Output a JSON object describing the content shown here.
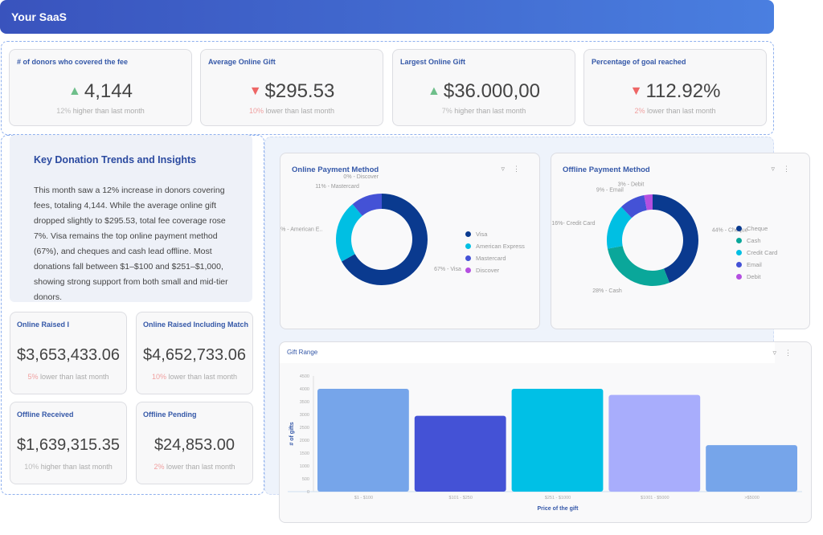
{
  "app": {
    "title": "Your SaaS"
  },
  "kpis": [
    {
      "title": "# of donors who covered the fee",
      "value": "4,144",
      "trend": "up",
      "pct": "12%",
      "text": " higher than last month"
    },
    {
      "title": "Average Online Gift",
      "value": "$295.53",
      "trend": "down",
      "pct": "10%",
      "text": " lower than last month"
    },
    {
      "title": "Largest Online Gift",
      "value": "$36.000,00",
      "trend": "up",
      "pct": "7%",
      "text": " higher than last month"
    },
    {
      "title": "Percentage of goal reached",
      "value": "112.92%",
      "trend": "down",
      "pct": "2%",
      "text": " lower than last month"
    }
  ],
  "insights": {
    "title": "Key Donation Trends and Insights",
    "body": "This month saw a 12% increase in donors covering fees, totaling 4,144. While the average online gift dropped slightly to $295.53, total fee coverage rose 7%. Visa remains the top online payment method (67%), and cheques and cash lead offline. Most donations fall between $1–$100 and $251–$1,000, showing strong support from both small and mid-tier donors."
  },
  "stats": [
    {
      "title": "Online Raised I",
      "value": "$3,653,433.06",
      "trend": "down",
      "pct": "5%",
      "text": " lower than last month"
    },
    {
      "title": "Online Raised Including Match",
      "value": "$4,652,733.06",
      "trend": "down",
      "pct": "10%",
      "text": " lower than last month"
    },
    {
      "title": "Offline Received",
      "value": "$1,639,315.35",
      "trend": "up",
      "pct": "10%",
      "text": " higher than last month"
    },
    {
      "title": "Offline Pending",
      "value": "$24,853.00",
      "trend": "down",
      "pct": "2%",
      "text": " lower than last month"
    }
  ],
  "icons": {
    "filter": "filter-icon",
    "more": "more-vertical-icon",
    "up": "triangle-up-icon",
    "down": "triangle-down-icon"
  },
  "chart_data": [
    {
      "type": "pie",
      "title": "Online Payment Method",
      "donut": true,
      "legend": "right",
      "labels": [
        "Visa",
        "American Express",
        "Mastercard",
        "Discover"
      ],
      "values": [
        67,
        22,
        11,
        0
      ],
      "data_labels": [
        "67% - Visa",
        "22% - American E..",
        "11% - Mastercard",
        "0% - Discover"
      ],
      "colors": [
        "#0a3a8f",
        "#00bfe3",
        "#4452d6",
        "#b44fe0"
      ]
    },
    {
      "type": "pie",
      "title": "Offline Payment Method",
      "donut": true,
      "legend": "right",
      "labels": [
        "Cheque",
        "Cash",
        "Credit Card",
        "Email",
        "Debit"
      ],
      "values": [
        44,
        28,
        16,
        9,
        3
      ],
      "data_labels": [
        "44% - Cheque",
        "28% - Cash",
        "16%- Credit Card",
        "9% - Email",
        "3% - Debit"
      ],
      "colors": [
        "#0a3a8f",
        "#0aa79a",
        "#00bfe3",
        "#4452d6",
        "#b44fe0"
      ]
    },
    {
      "type": "bar",
      "title": "Gift Range",
      "xlabel": "Price of the gift",
      "ylabel": "# of gifts",
      "categories": [
        "$1 - $100",
        "$101 - $250",
        "$251 - $1000",
        "$1001 - $5000",
        ">$5000"
      ],
      "values": [
        4000,
        2950,
        4000,
        3760,
        1810
      ],
      "ylim": [
        0,
        4500
      ],
      "yticks": [
        0,
        500,
        1000,
        1500,
        2000,
        2500,
        3000,
        3500,
        4000,
        4500
      ],
      "colors": [
        "#76a5ea",
        "#4452d6",
        "#00c0e6",
        "#a8adfc",
        "#76a5ea"
      ],
      "grid": false
    }
  ]
}
